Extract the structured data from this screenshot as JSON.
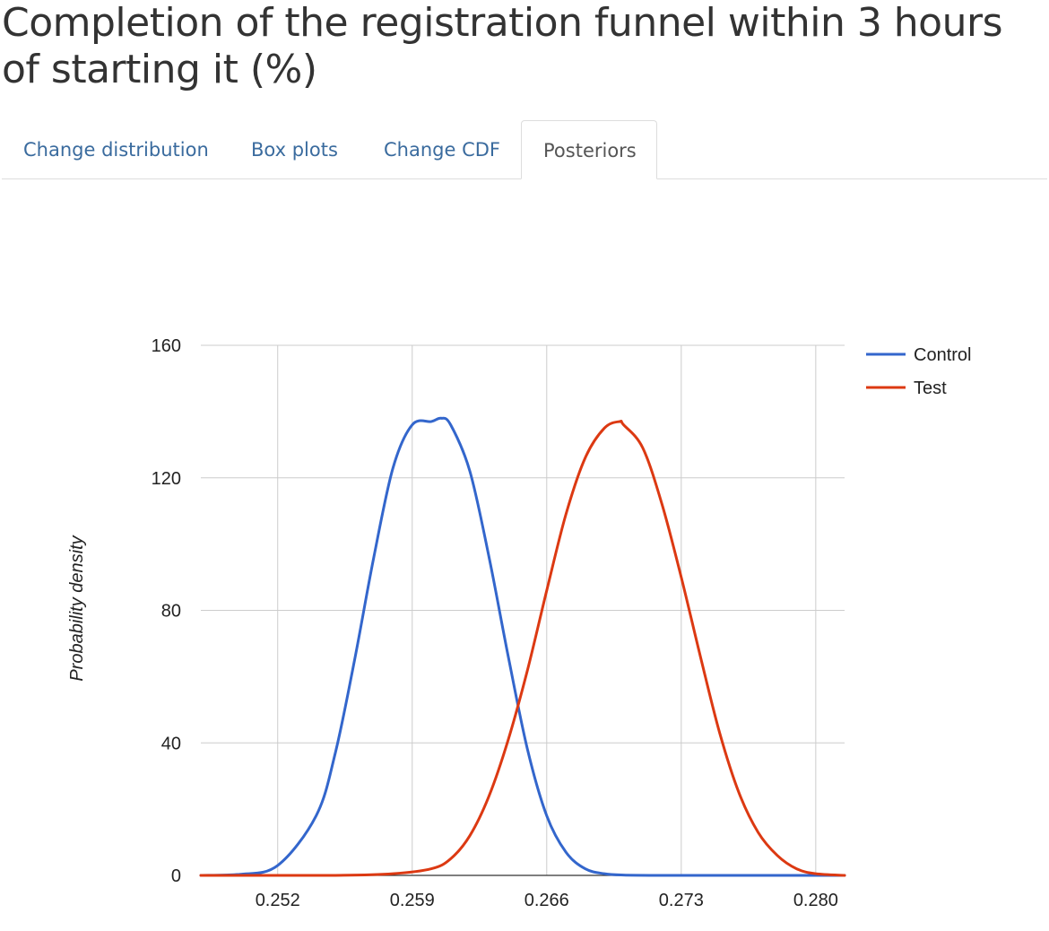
{
  "header": {
    "title": "Completion of the registration funnel within 3 hours of starting it (%)"
  },
  "tabs": [
    {
      "label": "Change distribution",
      "active": false
    },
    {
      "label": "Box plots",
      "active": false
    },
    {
      "label": "Change CDF",
      "active": false
    },
    {
      "label": "Posteriors",
      "active": true
    }
  ],
  "colors": {
    "control": "#3366cc",
    "test": "#dc3912",
    "grid": "#cccccc",
    "baseline": "#333333",
    "tab_link": "#3a6b9e"
  },
  "chart_data": {
    "type": "line",
    "title": "",
    "xlabel": "",
    "ylabel": "Probability density",
    "xlim": [
      0.248,
      0.2815
    ],
    "ylim": [
      0,
      160
    ],
    "x_ticks": [
      "0.252",
      "0.259",
      "0.266",
      "0.273",
      "0.280"
    ],
    "y_ticks": [
      "0",
      "40",
      "80",
      "120",
      "160"
    ],
    "grid": true,
    "legend_position": "right",
    "series": [
      {
        "name": "Control",
        "color": "#3366cc",
        "x": [
          0.248,
          0.25,
          0.252,
          0.254,
          0.255,
          0.256,
          0.257,
          0.258,
          0.259,
          0.26,
          0.2605,
          0.261,
          0.262,
          0.263,
          0.264,
          0.265,
          0.266,
          0.267,
          0.268,
          0.269,
          0.27,
          0.272,
          0.275,
          0.2815
        ],
        "values": [
          0.0,
          0.3,
          3.0,
          18.0,
          37.0,
          65.0,
          96.0,
          123.0,
          136.0,
          137.0,
          138.0,
          136.0,
          122.0,
          96.0,
          66.0,
          38.0,
          18.0,
          7.0,
          2.0,
          0.5,
          0.1,
          0.0,
          0.0,
          0.0
        ]
      },
      {
        "name": "Test",
        "color": "#dc3912",
        "x": [
          0.248,
          0.255,
          0.258,
          0.26,
          0.261,
          0.262,
          0.263,
          0.264,
          0.265,
          0.266,
          0.267,
          0.268,
          0.269,
          0.2698,
          0.27,
          0.271,
          0.272,
          0.273,
          0.274,
          0.275,
          0.276,
          0.277,
          0.278,
          0.279,
          0.28,
          0.2815
        ],
        "values": [
          0.0,
          0.0,
          0.5,
          2.0,
          5.0,
          12.0,
          24.0,
          41.0,
          62.0,
          86.0,
          109.0,
          126.0,
          135.0,
          137.0,
          136.0,
          129.0,
          112.0,
          90.0,
          66.0,
          43.0,
          25.0,
          13.0,
          6.0,
          2.0,
          0.5,
          0.0
        ]
      }
    ]
  }
}
